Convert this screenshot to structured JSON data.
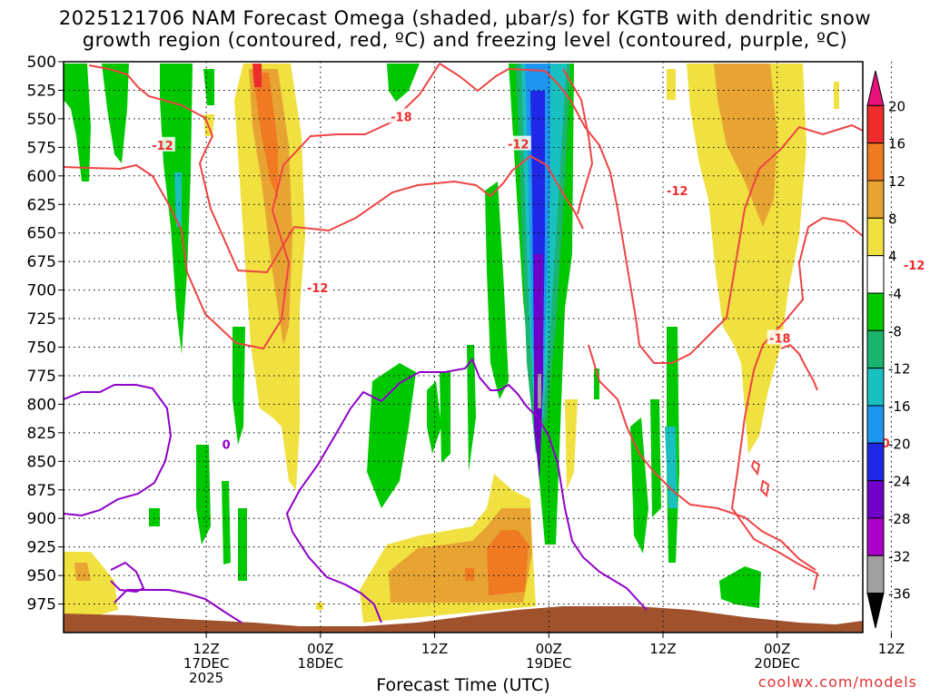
{
  "title": {
    "line1": "2025121706 NAM Forecast Omega (shaded, μbar/s) for KGTB with dendritic snow",
    "line2": "growth region (contoured, red, ºC) and freezing level (contoured, purple, ºC)"
  },
  "credit": "coolwx.com/models",
  "chart_data": {
    "type": "heatmap",
    "xlabel": "Forecast Time (UTC)",
    "ylabel": "",
    "x_range_hours": [
      -9,
      75
    ],
    "x_ticks": [
      {
        "h": 6,
        "lines": [
          "12Z",
          "17DEC",
          "2025"
        ]
      },
      {
        "h": 18,
        "lines": [
          "00Z",
          "18DEC"
        ]
      },
      {
        "h": 30,
        "lines": [
          "12Z"
        ]
      },
      {
        "h": 42,
        "lines": [
          "00Z",
          "19DEC"
        ]
      },
      {
        "h": 54,
        "lines": [
          "12Z"
        ]
      },
      {
        "h": 66,
        "lines": [
          "00Z",
          "20DEC"
        ]
      },
      {
        "h": 78,
        "lines": [
          "12Z"
        ]
      }
    ],
    "y_levels": [
      500,
      525,
      550,
      575,
      600,
      625,
      650,
      675,
      700,
      725,
      750,
      775,
      800,
      825,
      850,
      875,
      900,
      925,
      950,
      975
    ],
    "y_range": [
      500,
      1000
    ],
    "legend": {
      "placement": "right",
      "labels": [
        "20",
        "16",
        "12",
        "8",
        "4",
        "-4",
        "-8",
        "-12",
        "-16",
        "-20",
        "-24",
        "-28",
        "-32",
        "-36"
      ],
      "colors": [
        "#e8127a",
        "#ee2c2c",
        "#f07a22",
        "#e8a432",
        "#f0e040",
        "#ffffff",
        "#00c800",
        "#1ab46e",
        "#18c0c0",
        "#1e96f0",
        "#1e28e6",
        "#6e00c8",
        "#aa00c8",
        "#a0a0a0",
        "#000000"
      ]
    },
    "contour_labels": [
      {
        "text": "-12",
        "color": "#ee2c2c",
        "h": 1.4,
        "p": 573
      },
      {
        "text": "-18",
        "color": "#ee2c2c",
        "h": 26.5,
        "p": 548
      },
      {
        "text": "-12",
        "color": "#ee2c2c",
        "h": 38.8,
        "p": 572
      },
      {
        "text": "-12",
        "color": "#ee2c2c",
        "h": 55.5,
        "p": 613
      },
      {
        "text": "-12",
        "color": "#ee2c2c",
        "h": 17.7,
        "p": 698
      },
      {
        "text": "-18",
        "color": "#ee2c2c",
        "h": 66.3,
        "p": 742
      },
      {
        "text": "-12",
        "color": "#ee2c2c",
        "h": 80.4,
        "p": 678
      },
      {
        "text": "0",
        "color": "#9000c8",
        "h": 8.1,
        "p": 835
      },
      {
        "text": "0",
        "color": "#ee2c2c",
        "h": 77.4,
        "p": 834
      }
    ],
    "grid": true
  }
}
